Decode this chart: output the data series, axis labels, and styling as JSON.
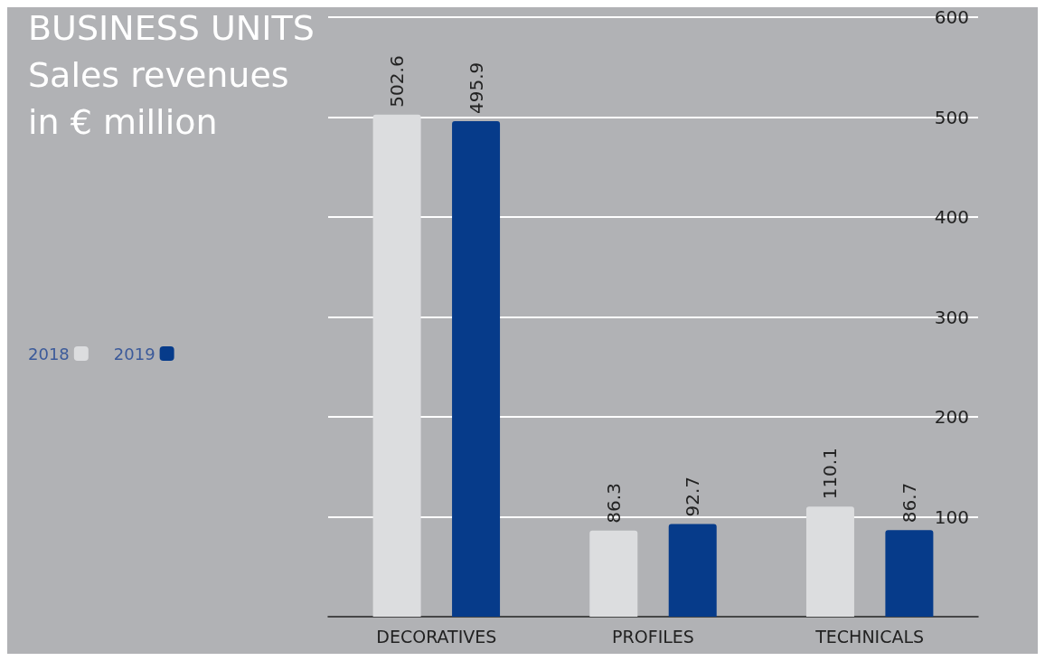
{
  "chart_data": {
    "type": "bar",
    "title": "BUSINESS UNITS",
    "subtitle": "Sales revenues in € million",
    "categories": [
      "DECORATIVES",
      "PROFILES",
      "TECHNICALS"
    ],
    "series": [
      {
        "name": "2018",
        "color": "#dcdddf",
        "values": [
          502.6,
          86.3,
          110.1
        ]
      },
      {
        "name": "2019",
        "color": "#063b8a",
        "values": [
          495.9,
          92.7,
          86.7
        ]
      }
    ],
    "ylim": [
      0,
      600
    ],
    "yticks": [
      100,
      200,
      300,
      400,
      500,
      600
    ],
    "grid": "y",
    "legend": "left",
    "data_labels": true
  }
}
